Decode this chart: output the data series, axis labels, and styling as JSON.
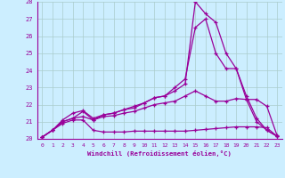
{
  "xlabel": "Windchill (Refroidissement éolien,°C)",
  "background_color": "#cceeff",
  "grid_color": "#aacccc",
  "line_color": "#990099",
  "xlim": [
    -0.5,
    23.5
  ],
  "ylim": [
    20,
    28
  ],
  "xticks": [
    0,
    1,
    2,
    3,
    4,
    5,
    6,
    7,
    8,
    9,
    10,
    11,
    12,
    13,
    14,
    15,
    16,
    17,
    18,
    19,
    20,
    21,
    22,
    23
  ],
  "yticks": [
    20,
    21,
    22,
    23,
    24,
    25,
    26,
    27,
    28
  ],
  "series": [
    [
      20.1,
      20.5,
      20.9,
      21.1,
      21.1,
      20.5,
      20.4,
      20.4,
      20.4,
      20.45,
      20.45,
      20.45,
      20.45,
      20.45,
      20.45,
      20.5,
      20.55,
      20.6,
      20.65,
      20.7,
      20.7,
      20.7,
      20.65,
      20.15
    ],
    [
      20.1,
      20.5,
      21.0,
      21.2,
      21.6,
      21.1,
      21.3,
      21.35,
      21.5,
      21.6,
      21.8,
      22.0,
      22.1,
      22.2,
      22.5,
      22.8,
      22.5,
      22.2,
      22.2,
      22.35,
      22.3,
      22.3,
      21.9,
      20.2
    ],
    [
      20.1,
      20.5,
      21.0,
      21.2,
      21.3,
      21.1,
      21.4,
      21.5,
      21.7,
      21.9,
      22.1,
      22.4,
      22.5,
      23.0,
      23.5,
      26.5,
      27.0,
      25.0,
      24.1,
      24.1,
      22.3,
      21.0,
      20.5,
      20.15
    ],
    [
      20.1,
      20.5,
      21.1,
      21.5,
      21.65,
      21.2,
      21.4,
      21.5,
      21.7,
      21.8,
      22.1,
      22.4,
      22.5,
      22.8,
      23.2,
      28.0,
      27.3,
      26.8,
      25.0,
      24.1,
      22.5,
      21.2,
      20.5,
      20.15
    ]
  ]
}
